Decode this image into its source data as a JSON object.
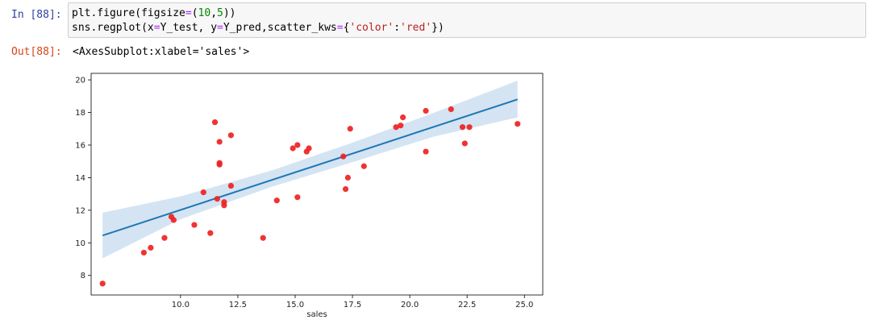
{
  "cells": {
    "input": {
      "prompt": "In [88]:",
      "line1": {
        "a": "plt.figure(figsize",
        "b": "=",
        "c": "(",
        "d": "10",
        "e": ",",
        "f": "5",
        "g": "))"
      },
      "line2": {
        "a": "sns.regplot(x",
        "b": "=",
        "c": "Y_test, y",
        "d": "=",
        "e": "Y_pred,scatter_kws",
        "f": "=",
        "g": "{",
        "h": "'color'",
        "i": ":",
        "j": "'red'",
        "k": "})"
      }
    },
    "output": {
      "prompt": "Out[88]:",
      "text": "<AxesSubplot:xlabel='sales'>"
    }
  },
  "colors": {
    "scatter": "#ee2222",
    "line": "#1f77b4",
    "ci_band": "#c6dbef"
  },
  "chart_data": {
    "type": "scatter",
    "xlabel": "sales",
    "ylabel": "",
    "xlim": [
      6.1,
      25.8
    ],
    "ylim": [
      6.8,
      20.4
    ],
    "xticks": [
      10.0,
      12.5,
      15.0,
      17.5,
      20.0,
      22.5,
      25.0
    ],
    "xtick_labels": [
      "10.0",
      "12.5",
      "15.0",
      "17.5",
      "20.0",
      "22.5",
      "25.0"
    ],
    "yticks": [
      8,
      10,
      12,
      14,
      16,
      18,
      20
    ],
    "ytick_labels": [
      "8",
      "10",
      "12",
      "14",
      "16",
      "18",
      "20"
    ],
    "grid": false,
    "points": [
      {
        "x": 6.6,
        "y": 7.5
      },
      {
        "x": 8.4,
        "y": 9.4
      },
      {
        "x": 8.7,
        "y": 9.7
      },
      {
        "x": 9.3,
        "y": 10.3
      },
      {
        "x": 9.6,
        "y": 11.6
      },
      {
        "x": 9.7,
        "y": 11.4
      },
      {
        "x": 10.6,
        "y": 11.1
      },
      {
        "x": 11.0,
        "y": 13.1
      },
      {
        "x": 11.3,
        "y": 10.6
      },
      {
        "x": 11.5,
        "y": 17.4
      },
      {
        "x": 11.6,
        "y": 12.7
      },
      {
        "x": 11.7,
        "y": 16.2
      },
      {
        "x": 11.7,
        "y": 14.9
      },
      {
        "x": 11.7,
        "y": 14.8
      },
      {
        "x": 11.9,
        "y": 12.5
      },
      {
        "x": 11.9,
        "y": 12.3
      },
      {
        "x": 12.2,
        "y": 16.6
      },
      {
        "x": 12.2,
        "y": 13.5
      },
      {
        "x": 13.6,
        "y": 10.3
      },
      {
        "x": 14.2,
        "y": 12.6
      },
      {
        "x": 14.9,
        "y": 15.8
      },
      {
        "x": 15.1,
        "y": 16.0
      },
      {
        "x": 15.1,
        "y": 12.8
      },
      {
        "x": 15.5,
        "y": 15.6
      },
      {
        "x": 15.6,
        "y": 15.8
      },
      {
        "x": 17.1,
        "y": 15.3
      },
      {
        "x": 17.2,
        "y": 13.3
      },
      {
        "x": 17.3,
        "y": 14.0
      },
      {
        "x": 17.4,
        "y": 17.0
      },
      {
        "x": 18.0,
        "y": 14.7
      },
      {
        "x": 19.4,
        "y": 17.1
      },
      {
        "x": 19.6,
        "y": 17.2
      },
      {
        "x": 19.7,
        "y": 17.7
      },
      {
        "x": 20.7,
        "y": 18.1
      },
      {
        "x": 20.7,
        "y": 15.6
      },
      {
        "x": 21.8,
        "y": 18.2
      },
      {
        "x": 22.3,
        "y": 17.1
      },
      {
        "x": 22.4,
        "y": 16.1
      },
      {
        "x": 22.6,
        "y": 17.1
      },
      {
        "x": 24.7,
        "y": 17.3
      }
    ],
    "regression": {
      "x": [
        6.6,
        24.7
      ],
      "y": [
        10.45,
        18.8
      ]
    },
    "ci_band": {
      "x": [
        6.6,
        10.0,
        14.0,
        17.5,
        21.0,
        24.7
      ],
      "lower": [
        9.05,
        11.45,
        13.45,
        14.95,
        16.5,
        17.7
      ],
      "upper": [
        11.85,
        12.85,
        14.45,
        16.15,
        17.95,
        19.95
      ]
    }
  }
}
